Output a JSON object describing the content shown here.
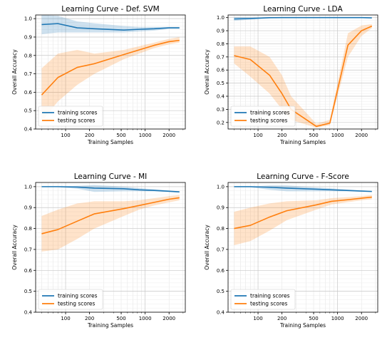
{
  "chart_data": [
    {
      "type": "line",
      "title": "Learning Curve - Def. SVM",
      "xlabel": "Training Samples",
      "ylabel": "Overall Accuracy",
      "xscale": "log",
      "xlim": [
        42,
        3200
      ],
      "ylim": [
        0.4,
        1.02
      ],
      "xticks": [
        100,
        200,
        500,
        1000,
        2000
      ],
      "yticks": [
        0.4,
        0.5,
        0.6,
        0.7,
        0.8,
        0.9,
        1.0
      ],
      "ytick_labels": [
        "0.4",
        "0.5",
        "0.6",
        "0.7",
        "0.8",
        "0.9",
        "1.0"
      ],
      "grid": true,
      "legend": "lower-left",
      "x": [
        50,
        80,
        140,
        230,
        540,
        840,
        1300,
        2000,
        2700
      ],
      "series": [
        {
          "name": "training scores",
          "color": "#1f77b4",
          "values": [
            0.968,
            0.973,
            0.95,
            0.945,
            0.938,
            0.942,
            0.945,
            0.95,
            0.95
          ],
          "lower": [
            0.915,
            0.925,
            0.925,
            0.925,
            0.925,
            0.93,
            0.935,
            0.945,
            0.945
          ],
          "upper": [
            1.02,
            1.015,
            0.985,
            0.975,
            0.96,
            0.955,
            0.955,
            0.955,
            0.955
          ]
        },
        {
          "name": "testing scores",
          "color": "#ff7f0e",
          "values": [
            0.585,
            0.68,
            0.735,
            0.755,
            0.805,
            0.83,
            0.855,
            0.875,
            0.882
          ],
          "lower": [
            0.44,
            0.55,
            0.64,
            0.7,
            0.78,
            0.81,
            0.84,
            0.86,
            0.87
          ],
          "upper": [
            0.73,
            0.81,
            0.83,
            0.81,
            0.83,
            0.85,
            0.87,
            0.89,
            0.9
          ]
        }
      ]
    },
    {
      "type": "line",
      "title": "Learning Curve - LDA",
      "xlabel": "Training Samples",
      "ylabel": "Overall Accuracy",
      "xscale": "log",
      "xlim": [
        42,
        3200
      ],
      "ylim": [
        0.15,
        1.02
      ],
      "xticks": [
        100,
        200,
        500,
        1000,
        2000
      ],
      "yticks": [
        0.2,
        0.3,
        0.4,
        0.5,
        0.6,
        0.7,
        0.8,
        0.9,
        1.0
      ],
      "ytick_labels": [
        "0.2",
        "0.3",
        "0.4",
        "0.5",
        "0.6",
        "0.7",
        "0.8",
        "0.9",
        "1.0"
      ],
      "grid": true,
      "legend": "lower-left",
      "x": [
        50,
        80,
        140,
        200,
        260,
        540,
        800,
        1350,
        2000,
        2700
      ],
      "series": [
        {
          "name": "training scores",
          "color": "#1f77b4",
          "values": [
            0.99,
            0.993,
            0.999,
            1.0,
            1.0,
            1.0,
            1.0,
            1.0,
            1.0,
            0.998
          ],
          "lower": [
            0.975,
            0.985,
            0.995,
            1.0,
            1.0,
            1.0,
            1.0,
            1.0,
            1.0,
            0.996
          ],
          "upper": [
            1.005,
            1.0,
            1.0,
            1.0,
            1.0,
            1.0,
            1.0,
            1.0,
            1.0,
            1.0
          ]
        },
        {
          "name": "testing scores",
          "color": "#ff7f0e",
          "values": [
            0.71,
            0.68,
            0.56,
            0.42,
            0.3,
            0.17,
            0.195,
            0.79,
            0.9,
            0.935
          ],
          "lower": [
            0.65,
            0.55,
            0.42,
            0.3,
            0.22,
            0.16,
            0.18,
            0.7,
            0.86,
            0.92
          ],
          "upper": [
            0.78,
            0.78,
            0.7,
            0.56,
            0.4,
            0.19,
            0.22,
            0.88,
            0.94,
            0.95
          ]
        }
      ]
    },
    {
      "type": "line",
      "title": "Learning Curve - MI",
      "xlabel": "Training Samples",
      "ylabel": "Overall Accuracy",
      "xscale": "log",
      "xlim": [
        42,
        3200
      ],
      "ylim": [
        0.4,
        1.02
      ],
      "xticks": [
        100,
        200,
        500,
        1000,
        2000
      ],
      "yticks": [
        0.4,
        0.5,
        0.6,
        0.7,
        0.8,
        0.9,
        1.0
      ],
      "ytick_labels": [
        "0.4",
        "0.5",
        "0.6",
        "0.7",
        "0.8",
        "0.9",
        "1.0"
      ],
      "grid": true,
      "legend": "lower-left",
      "x": [
        50,
        80,
        140,
        230,
        540,
        840,
        1300,
        2000,
        2700
      ],
      "series": [
        {
          "name": "training scores",
          "color": "#1f77b4",
          "values": [
            1.0,
            1.0,
            0.998,
            0.993,
            0.99,
            0.985,
            0.982,
            0.978,
            0.975
          ],
          "lower": [
            0.998,
            0.998,
            0.99,
            0.975,
            0.978,
            0.978,
            0.978,
            0.975,
            0.972
          ],
          "upper": [
            1.0,
            1.0,
            1.004,
            1.008,
            1.0,
            0.993,
            0.988,
            0.982,
            0.978
          ]
        },
        {
          "name": "testing scores",
          "color": "#ff7f0e",
          "values": [
            0.775,
            0.795,
            0.835,
            0.87,
            0.895,
            0.91,
            0.925,
            0.94,
            0.947
          ],
          "lower": [
            0.69,
            0.7,
            0.75,
            0.8,
            0.86,
            0.89,
            0.91,
            0.925,
            0.935
          ],
          "upper": [
            0.86,
            0.89,
            0.92,
            0.93,
            0.93,
            0.935,
            0.945,
            0.955,
            0.96
          ]
        }
      ]
    },
    {
      "type": "line",
      "title": "Learning Curve - F-Score",
      "xlabel": "Training Samples",
      "ylabel": "Overall Accuracy",
      "xscale": "log",
      "xlim": [
        42,
        3200
      ],
      "ylim": [
        0.4,
        1.02
      ],
      "xticks": [
        100,
        200,
        500,
        1000,
        2000
      ],
      "yticks": [
        0.4,
        0.5,
        0.6,
        0.7,
        0.8,
        0.9,
        1.0
      ],
      "ytick_labels": [
        "0.4",
        "0.5",
        "0.6",
        "0.7",
        "0.8",
        "0.9",
        "1.0"
      ],
      "grid": true,
      "legend": "lower-left",
      "x": [
        50,
        80,
        140,
        230,
        540,
        840,
        1300,
        2000,
        2700
      ],
      "series": [
        {
          "name": "training scores",
          "color": "#1f77b4",
          "values": [
            1.0,
            1.0,
            0.997,
            0.993,
            0.988,
            0.985,
            0.982,
            0.979,
            0.977
          ],
          "lower": [
            0.997,
            0.997,
            0.985,
            0.978,
            0.978,
            0.978,
            0.978,
            0.976,
            0.974
          ],
          "upper": [
            1.0,
            1.0,
            1.006,
            1.006,
            0.996,
            0.992,
            0.987,
            0.982,
            0.98
          ]
        },
        {
          "name": "testing scores",
          "color": "#ff7f0e",
          "values": [
            0.8,
            0.815,
            0.855,
            0.885,
            0.913,
            0.93,
            0.937,
            0.945,
            0.95
          ],
          "lower": [
            0.72,
            0.74,
            0.79,
            0.84,
            0.89,
            0.915,
            0.925,
            0.935,
            0.94
          ],
          "upper": [
            0.88,
            0.9,
            0.92,
            0.93,
            0.935,
            0.945,
            0.95,
            0.955,
            0.96
          ]
        }
      ]
    }
  ]
}
